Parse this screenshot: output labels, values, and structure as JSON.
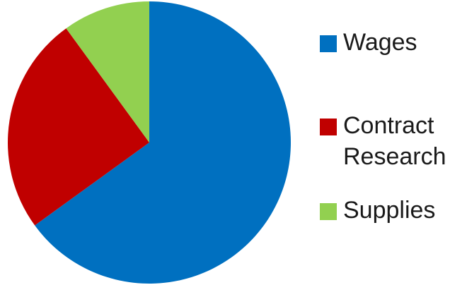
{
  "chart_data": {
    "type": "pie",
    "title": "",
    "legend_placement": "right",
    "start_angle_deg": 0,
    "direction": "clockwise",
    "slices": [
      {
        "label": "Wages",
        "value": 65,
        "color": "#0070C0"
      },
      {
        "label": "Contract\nResearch",
        "value": 25,
        "color": "#C00000"
      },
      {
        "label": "Supplies",
        "value": 10,
        "color": "#92D050"
      }
    ]
  }
}
